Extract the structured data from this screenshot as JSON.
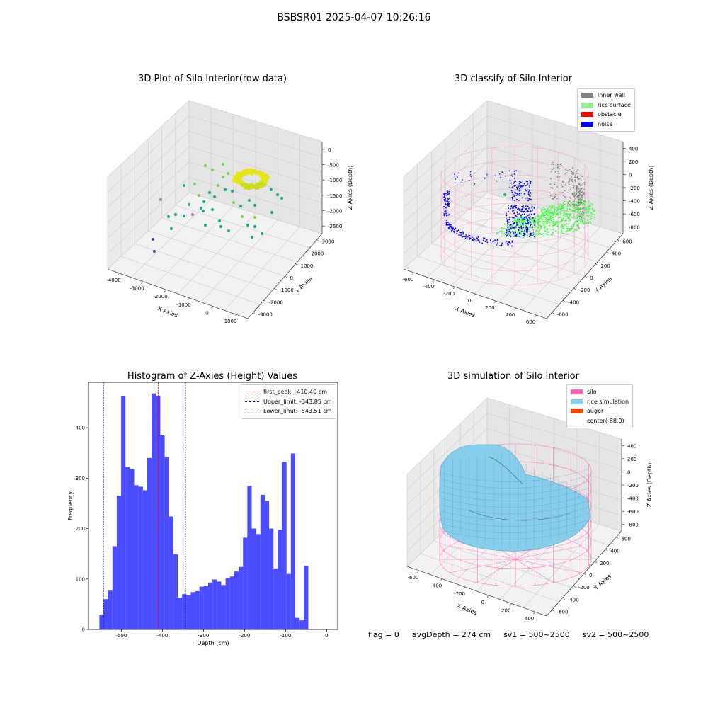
{
  "suptitle": "BSBSR01 2025-04-07 10:26:16",
  "footer": {
    "flag": "flag = 0",
    "avg": "avgDepth = 274 cm",
    "sv1": "sv1 = 500~2500",
    "sv2": "sv2 = 500~2500"
  },
  "chart_data": [
    {
      "type": "scatter",
      "title": "3D Plot of Silo Interior(row data)",
      "xlabel": "X Axies",
      "ylabel": "Y Axies",
      "zlabel": "Z Axies (Depth)",
      "x_ticks": [
        "-4000",
        "-3000",
        "-2000",
        "-1000",
        "0",
        "1000"
      ],
      "y_ticks": [
        "-3000",
        "-2000",
        "-1000",
        "0",
        "1000",
        "2000",
        "3000"
      ],
      "z_ticks": [
        "-2500",
        "-2000",
        "-1500",
        "-1000",
        "-500",
        "0"
      ],
      "colors": {
        "high": "#e5e419",
        "mid": "#7fd34e",
        "low": "#22a884",
        "lowest": "#5b4a9b"
      }
    },
    {
      "type": "scatter",
      "title": "3D classify of Silo Interior",
      "xlabel": "X Axies",
      "ylabel": "Y Axies",
      "zlabel": "Z Axies (Depth)",
      "x_ticks": [
        "-600",
        "-400",
        "-200",
        "0",
        "200",
        "400",
        "600"
      ],
      "y_ticks": [
        "-600",
        "-400",
        "-200",
        "0",
        "200",
        "400",
        "600"
      ],
      "z_ticks": [
        "-800",
        "-600",
        "-400",
        "-200",
        "0",
        "200",
        "400"
      ],
      "legend": [
        {
          "label": "inner wall",
          "color": "#808080"
        },
        {
          "label": "rice surface",
          "color": "#90ee90"
        },
        {
          "label": "obstacle",
          "color": "#ff0000"
        },
        {
          "label": "noise",
          "color": "#0000ff"
        }
      ]
    },
    {
      "type": "bar",
      "title": "Histogram of Z-Axies (Height) Values",
      "xlabel": "Depth (cm)",
      "ylabel": "Frequency",
      "xlim": [
        -580,
        27
      ],
      "ylim": [
        0,
        490
      ],
      "x_ticks": [
        -500,
        -400,
        -300,
        -200,
        -100,
        0
      ],
      "y_ticks": [
        0,
        100,
        200,
        300,
        400
      ],
      "bin_start": -553.5,
      "bin_width": 10.6,
      "values": [
        29,
        60,
        77,
        165,
        265,
        462,
        322,
        318,
        286,
        283,
        276,
        340,
        468,
        463,
        385,
        342,
        224,
        149,
        63,
        70,
        68,
        74,
        76,
        85,
        86,
        93,
        99,
        95,
        88,
        102,
        105,
        115,
        124,
        182,
        285,
        200,
        189,
        267,
        255,
        200,
        121,
        198,
        332,
        110,
        349,
        23,
        18,
        126,
        0,
        0,
        0
      ],
      "bar_color": "#0000ff",
      "vlines": [
        {
          "label": "first_peak: -410.40 cm",
          "x": -410.4,
          "color": "#ff0000"
        },
        {
          "label": "Upper_limit: -343.85 cm",
          "x": -343.85,
          "color": "#0000cd"
        },
        {
          "label": "Lower_limit: -543.51 cm",
          "x": -543.51,
          "color": "#0000cd"
        }
      ],
      "legend_position": "upper right"
    },
    {
      "type": "area",
      "title": "3D simulation of Silo Interior",
      "xlabel": "X Axies",
      "ylabel": "Y Axies",
      "zlabel": "Z Axies (Depth)",
      "x_ticks": [
        "-600",
        "-400",
        "-200",
        "0",
        "200",
        "400"
      ],
      "y_ticks": [
        "-600",
        "-400",
        "-200",
        "0",
        "200",
        "400",
        "600"
      ],
      "z_ticks": [
        "-800",
        "-600",
        "-400",
        "-200",
        "0",
        "200",
        "400"
      ],
      "legend": [
        {
          "label": "silo",
          "color": "#ff69b4"
        },
        {
          "label": "rice simulation",
          "color": "#87ceeb"
        },
        {
          "label": "auger",
          "color": "#ff4500"
        },
        {
          "label": "center(-88,0)",
          "color": ""
        }
      ]
    }
  ]
}
